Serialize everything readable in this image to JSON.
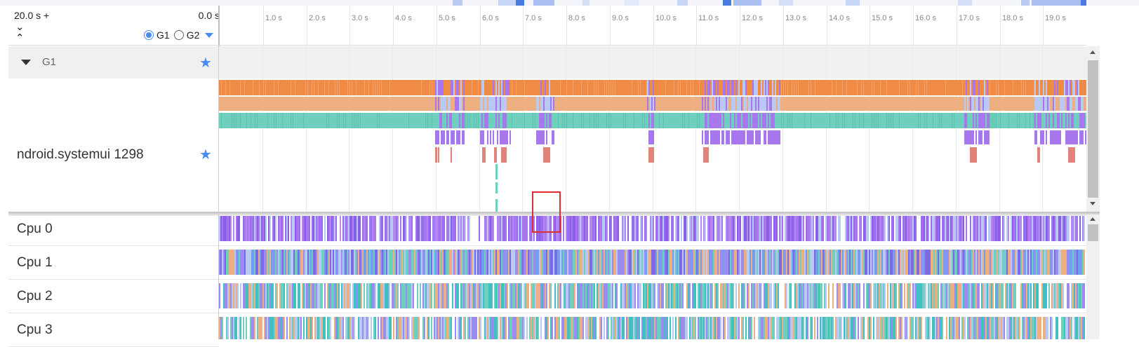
{
  "header": {
    "range_start": "20.0 s +",
    "range_end": "0.0 s",
    "expand_glyph": "⌄",
    "collapse_glyph": "⌃",
    "radio_g1": "G1",
    "radio_g2": "G2",
    "selected_group": "G1"
  },
  "time_ticks": [
    "1.0 s",
    "2.0 s",
    "3.0 s",
    "4.0 s",
    "5.0 s",
    "6.0 s",
    "7.0 s",
    "8.0 s",
    "9.0 s",
    "10.0 s",
    "11.0 s",
    "12.0 s",
    "13.0 s",
    "14.0 s",
    "15.0 s",
    "16.0 s",
    "17.0 s",
    "18.0 s",
    "19.0 s"
  ],
  "group": {
    "name": "G1",
    "chevron_icon": "triangle-down-icon",
    "pin_icon": "star-icon"
  },
  "process_track": {
    "name": "ndroid.systemui 1298",
    "pin_icon": "star-icon"
  },
  "cpu_tracks": [
    "Cpu 0",
    "Cpu 1",
    "Cpu 2",
    "Cpu 3"
  ],
  "colors": {
    "accent": "#4a8af4",
    "orange": "#ef8b45",
    "peach": "#eeaf80",
    "teal": "#6fcfbf",
    "purple": "#a877ee",
    "lavender": "#b8c9f2",
    "salmon": "#e0847a",
    "selection": "#dc3030"
  }
}
